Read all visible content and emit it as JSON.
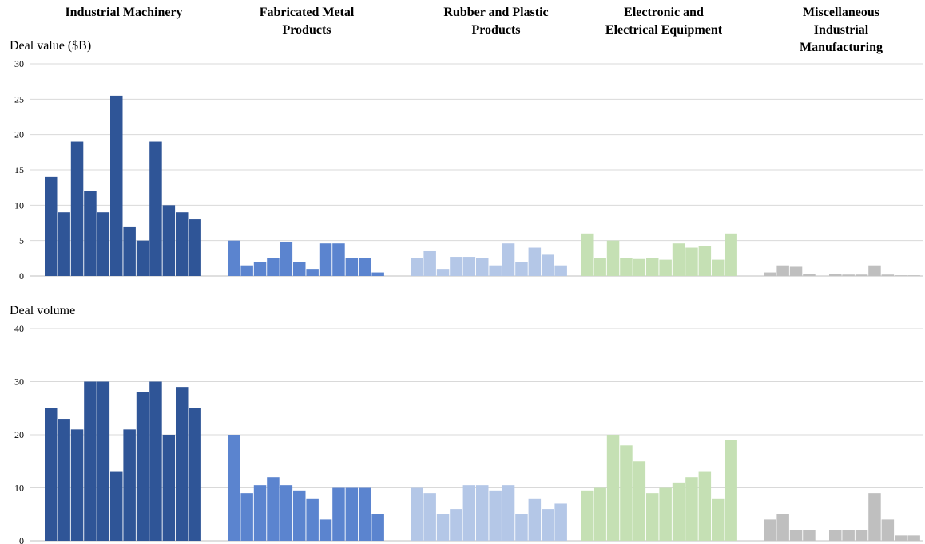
{
  "chart_data": {
    "type": "bar",
    "categories": [
      {
        "name": "Industrial Machinery",
        "title_lines": [
          "Industrial Machinery"
        ],
        "color": "#2f5597"
      },
      {
        "name": "Fabricated Metal Products",
        "title_lines": [
          "Fabricated Metal",
          "Products"
        ],
        "color": "#5b84cf"
      },
      {
        "name": "Rubber and Plastic Products",
        "title_lines": [
          "Rubber and Plastic",
          "Products"
        ],
        "color": "#b4c7e7"
      },
      {
        "name": "Electronic and Electrical Equipment",
        "title_lines": [
          "Electronic and",
          "Electrical Equipment"
        ],
        "color": "#c5e0b4"
      },
      {
        "name": "Miscellaneous Industrial Manufacturing",
        "title_lines": [
          "Miscellaneous",
          "Industrial",
          "Manufacturing"
        ],
        "color": "#bfbfbf"
      }
    ],
    "panels": [
      {
        "ylabel": "Deal value ($B)",
        "ylim": [
          0,
          30
        ],
        "yticks": [
          0,
          5,
          10,
          15,
          20,
          25,
          30
        ],
        "grid": true,
        "series": [
          {
            "category": "Industrial Machinery",
            "values": [
              14,
              9,
              19,
              12,
              9,
              25.5,
              7,
              5,
              19,
              10,
              9,
              8
            ]
          },
          {
            "category": "Fabricated Metal Products",
            "values": [
              5,
              1.5,
              2,
              2.5,
              4.8,
              2,
              1,
              4.6,
              4.6,
              2.5,
              2.5,
              0.5
            ]
          },
          {
            "category": "Rubber and Plastic Products",
            "values": [
              2.5,
              3.5,
              1,
              2.7,
              2.7,
              2.5,
              1.5,
              4.6,
              2,
              4,
              3,
              1.5
            ]
          },
          {
            "category": "Electronic and Electrical Equipment",
            "values": [
              6,
              2.5,
              5,
              2.5,
              2.4,
              2.5,
              2.3,
              4.6,
              4,
              4.2,
              2.3,
              6
            ]
          },
          {
            "category": "Miscellaneous Industrial Manufacturing",
            "values": [
              0.5,
              1.5,
              1.3,
              0.3,
              0,
              0.3,
              0.2,
              0.2,
              1.5,
              0.2,
              0.1,
              0.1
            ]
          }
        ]
      },
      {
        "ylabel": "Deal volume",
        "ylim": [
          0,
          40
        ],
        "yticks": [
          0,
          10,
          20,
          30,
          40
        ],
        "grid": true,
        "series": [
          {
            "category": "Industrial Machinery",
            "values": [
              25,
              23,
              21,
              30,
              30,
              13,
              21,
              28,
              30,
              20,
              29,
              25
            ]
          },
          {
            "category": "Fabricated Metal Products",
            "values": [
              20,
              9,
              10.5,
              12,
              10.5,
              9.5,
              8,
              4,
              10,
              10,
              10,
              5
            ]
          },
          {
            "category": "Rubber and Plastic Products",
            "values": [
              10,
              9,
              5,
              6,
              10.5,
              10.5,
              9.5,
              10.5,
              5,
              8,
              6,
              7
            ]
          },
          {
            "category": "Electronic and Electrical Equipment",
            "values": [
              9.5,
              10,
              20,
              18,
              15,
              9,
              10,
              11,
              12,
              13,
              8,
              19
            ]
          },
          {
            "category": "Miscellaneous Industrial Manufacturing",
            "values": [
              4,
              5,
              2,
              2,
              0,
              2,
              2,
              2,
              9,
              4,
              1,
              1
            ]
          }
        ]
      }
    ]
  }
}
